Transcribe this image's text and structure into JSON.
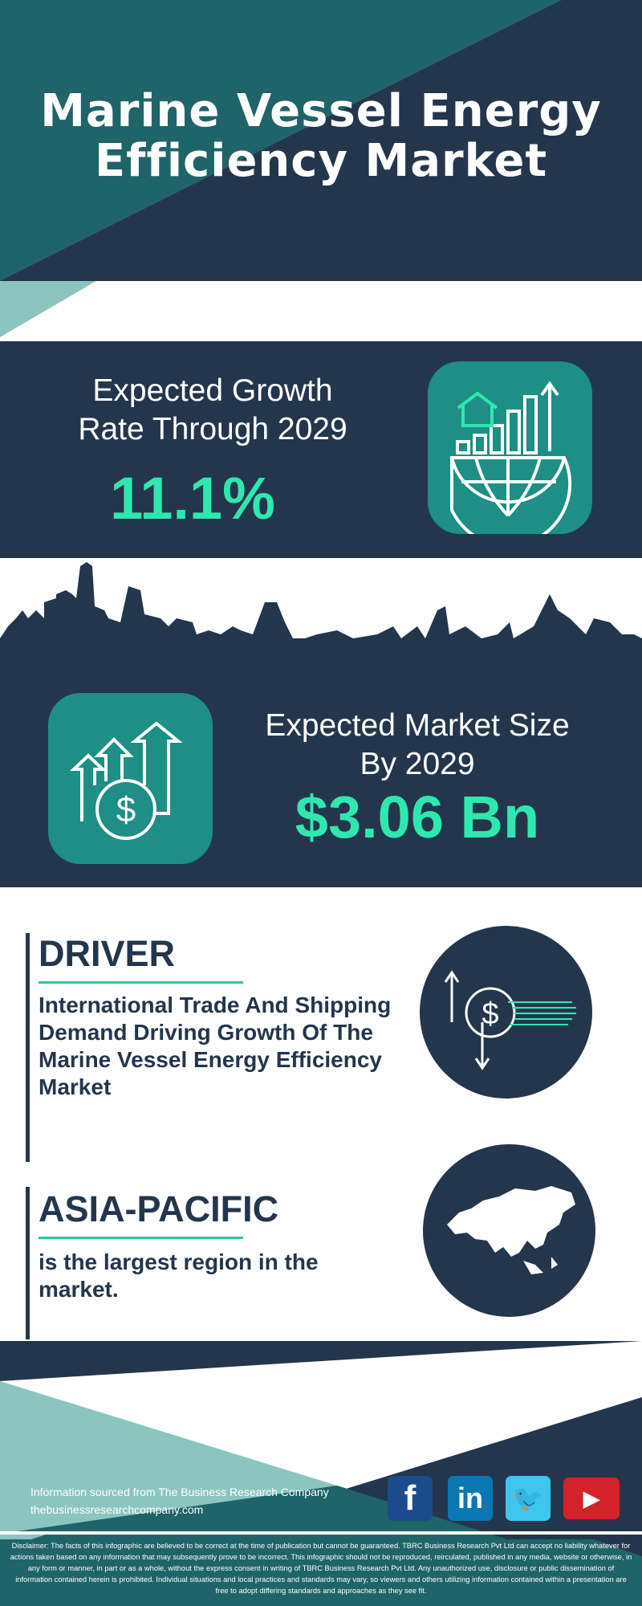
{
  "header": {
    "title_line1": "Marine Vessel Energy",
    "title_line2": "Efficiency Market"
  },
  "growth": {
    "label_line1": "Expected Growth",
    "label_line2": "Rate Through 2029",
    "value": "11.1%",
    "icon": "house-chart-globe-icon"
  },
  "market_size": {
    "label_line1": "Expected Market Size",
    "label_line2": "By 2029",
    "value": "$3.06 Bn",
    "icon": "dollar-growth-arrows-icon"
  },
  "driver": {
    "heading": "DRIVER",
    "text": "International Trade And Shipping Demand Driving Growth Of The Marine Vessel Energy Efficiency Market",
    "icon": "dollar-exchange-icon"
  },
  "region": {
    "heading": "ASIA-PACIFIC",
    "text": "is the largest region in the market.",
    "icon": "asia-map-icon"
  },
  "footer": {
    "source": "Information sourced from The Business Research Company",
    "website": "thebusinessresearchcompany.com",
    "social": [
      {
        "name": "facebook",
        "glyph": "f",
        "color": "#1c4b8c"
      },
      {
        "name": "linkedin",
        "glyph": "in",
        "color": "#0a77b5"
      },
      {
        "name": "twitter",
        "glyph": "🐦",
        "color": "#3ec6ee"
      },
      {
        "name": "youtube",
        "glyph": "▶",
        "color": "#d4222a"
      }
    ],
    "disclaimer": "Disclaimer: The facts of this infographic are believed to be correct at the time of publication but cannot be guaranteed. TBRC Business Research Pvt Ltd can accept no liability whatever for actions taken based on any information that may subsequently prove to be incorrect. This infographic should not be reproduced, reirculated, published in any media, website or otherwise, in any form or manner, in part or as a whole, without the express consent in writing of TBRC Business Research Pvt Ltd. Any unauthorized use, disclosure or public dissemination of information contained herein is prohibited. Individual situations and local practices and standards may vary, so viewers and others utilizing information contained within a presentation are free to adopt differing standards and approaches as they see fit."
  },
  "colors": {
    "navy": "#24364c",
    "teal": "#1f6468",
    "light_teal": "#8cc5c0",
    "accent": "#2ee8b0",
    "icon_box": "#1d8f85"
  }
}
